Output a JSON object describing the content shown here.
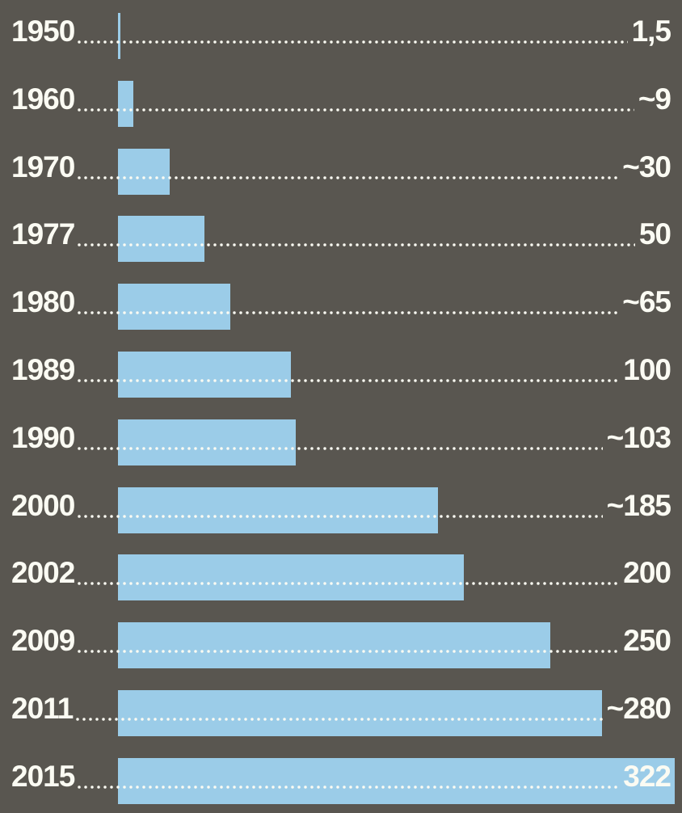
{
  "chart_data": {
    "type": "bar",
    "orientation": "horizontal",
    "title": "",
    "xlabel": "",
    "ylabel": "",
    "categories": [
      "1950",
      "1960",
      "1970",
      "1977",
      "1980",
      "1989",
      "1990",
      "2000",
      "2002",
      "2009",
      "2011",
      "2015"
    ],
    "values": [
      1.5,
      9,
      30,
      50,
      65,
      100,
      103,
      185,
      200,
      250,
      280,
      322
    ],
    "value_labels": [
      "1,5",
      "~9",
      "~30",
      "50",
      "~65",
      "100",
      "~103",
      "~185",
      "200",
      "250",
      "~280",
      "322"
    ],
    "xlim": [
      0,
      322
    ],
    "grid": false,
    "legend": false,
    "leader_style": "dotted",
    "colors": {
      "background": "#595650",
      "bar": "#9bcce8",
      "text": "#fbfbf3"
    }
  }
}
